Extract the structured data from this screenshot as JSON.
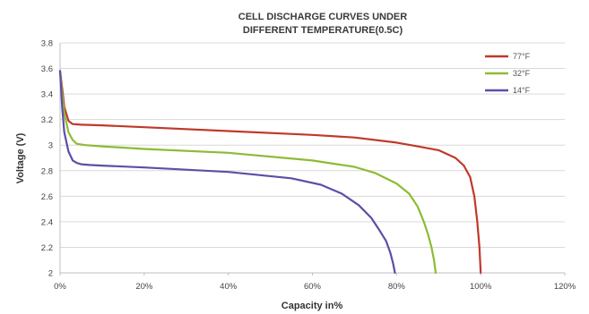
{
  "chart_data": {
    "type": "line",
    "title": [
      "CELL DISCHARGE CURVES UNDER",
      "DIFFERENT TEMPERATURE(0.5C)"
    ],
    "xlabel": "Capacity in%",
    "ylabel": "Voltage (V)",
    "xlim": [
      0,
      120
    ],
    "ylim": [
      2,
      3.8
    ],
    "x_ticks": [
      "0%",
      "20%",
      "40%",
      "60%",
      "80%",
      "100%",
      "120%"
    ],
    "y_ticks": [
      "2",
      "2.2",
      "2.4",
      "2.6",
      "2.8",
      "3",
      "3.2",
      "3.4",
      "3.6",
      "3.8"
    ],
    "grid": true,
    "legend_position": "top-right",
    "series": [
      {
        "name": "77°F",
        "color": "#c0392b",
        "x": [
          0,
          0.5,
          1,
          2,
          3,
          5,
          10,
          20,
          40,
          60,
          70,
          80,
          85,
          90,
          94,
          96,
          97.5,
          98.5,
          99.2,
          99.7,
          100
        ],
        "y": [
          3.58,
          3.45,
          3.3,
          3.19,
          3.165,
          3.16,
          3.155,
          3.14,
          3.11,
          3.08,
          3.06,
          3.02,
          2.99,
          2.96,
          2.9,
          2.84,
          2.75,
          2.6,
          2.4,
          2.2,
          2.0
        ]
      },
      {
        "name": "32°F",
        "color": "#8dbb35",
        "x": [
          0,
          0.5,
          1,
          2,
          3,
          4,
          6,
          10,
          20,
          40,
          60,
          70,
          75,
          80,
          83,
          85,
          86.5,
          87.5,
          88.3,
          88.9,
          89.3
        ],
        "y": [
          3.58,
          3.4,
          3.25,
          3.1,
          3.04,
          3.01,
          3.0,
          2.99,
          2.97,
          2.94,
          2.88,
          2.83,
          2.78,
          2.7,
          2.62,
          2.52,
          2.4,
          2.3,
          2.2,
          2.1,
          2.0
        ]
      },
      {
        "name": "14°F",
        "color": "#5b4fa8",
        "x": [
          0,
          0.5,
          1,
          2,
          3,
          4,
          5,
          7,
          10,
          20,
          40,
          55,
          62,
          67,
          71,
          74,
          76,
          77.5,
          78.5,
          79.2,
          79.6
        ],
        "y": [
          3.58,
          3.3,
          3.1,
          2.95,
          2.88,
          2.86,
          2.85,
          2.845,
          2.84,
          2.825,
          2.79,
          2.74,
          2.69,
          2.62,
          2.53,
          2.43,
          2.33,
          2.25,
          2.16,
          2.07,
          2.0
        ]
      }
    ]
  }
}
